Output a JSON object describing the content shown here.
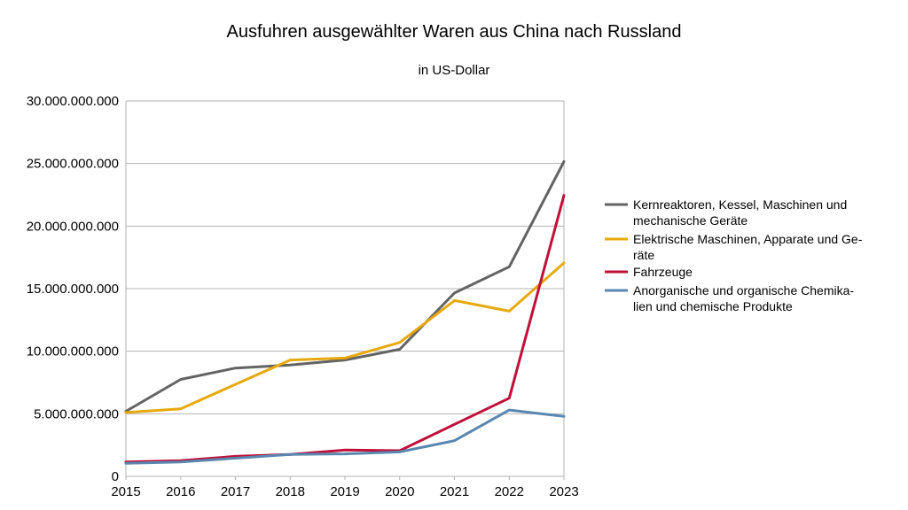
{
  "chart_data": {
    "type": "line",
    "title": "Ausfuhren ausgewählter Waren aus China nach Russland",
    "subtitle": "in US-Dollar",
    "xlabel": "",
    "ylabel": "",
    "x": [
      "2015",
      "2016",
      "2017",
      "2018",
      "2019",
      "2020",
      "2021",
      "2022",
      "2023"
    ],
    "ylim": [
      0,
      30000000000
    ],
    "y_ticks": [
      {
        "value": 0,
        "label": "0"
      },
      {
        "value": 5000000000,
        "label": "5.000.000.000"
      },
      {
        "value": 10000000000,
        "label": "10.000.000.000"
      },
      {
        "value": 15000000000,
        "label": "15.000.000.000"
      },
      {
        "value": 20000000000,
        "label": "20.000.000.000"
      },
      {
        "value": 25000000000,
        "label": "25.000.000.000"
      },
      {
        "value": 30000000000,
        "label": "30.000.000.000"
      }
    ],
    "grid": true,
    "legend_position": "right",
    "series": [
      {
        "name": "Kernreaktoren, Kessel, Maschinen und mechanische Geräte",
        "legend_lines": [
          "Kernreaktoren, Kessel, Maschinen und",
          "mechanische Geräte"
        ],
        "color": "#636363",
        "values": [
          5200000000,
          7750000000,
          8650000000,
          8900000000,
          9300000000,
          10150000000,
          14650000000,
          16750000000,
          25150000000
        ]
      },
      {
        "name": "Elektrische Maschinen, Apparate und Geräte",
        "legend_lines": [
          "Elektrische Maschinen, Apparate und Ge-",
          "räte"
        ],
        "color": "#e6a90e",
        "values": [
          5100000000,
          5400000000,
          7350000000,
          9300000000,
          9450000000,
          10700000000,
          14050000000,
          13200000000,
          17050000000
        ]
      },
      {
        "name": "Fahrzeuge",
        "legend_lines": [
          "Fahrzeuge"
        ],
        "color": "#c0103a",
        "values": [
          1150000000,
          1250000000,
          1600000000,
          1750000000,
          2100000000,
          2050000000,
          4150000000,
          6250000000,
          22450000000
        ]
      },
      {
        "name": "Anorganische und organische Chemikalien und chemische Produkte",
        "legend_lines": [
          "Anorganische und organische Chemika-",
          "lien und chemische Produkte"
        ],
        "color": "#5a87b0",
        "values": [
          1050000000,
          1150000000,
          1450000000,
          1750000000,
          1800000000,
          1950000000,
          2850000000,
          5300000000,
          4800000000
        ]
      }
    ]
  }
}
